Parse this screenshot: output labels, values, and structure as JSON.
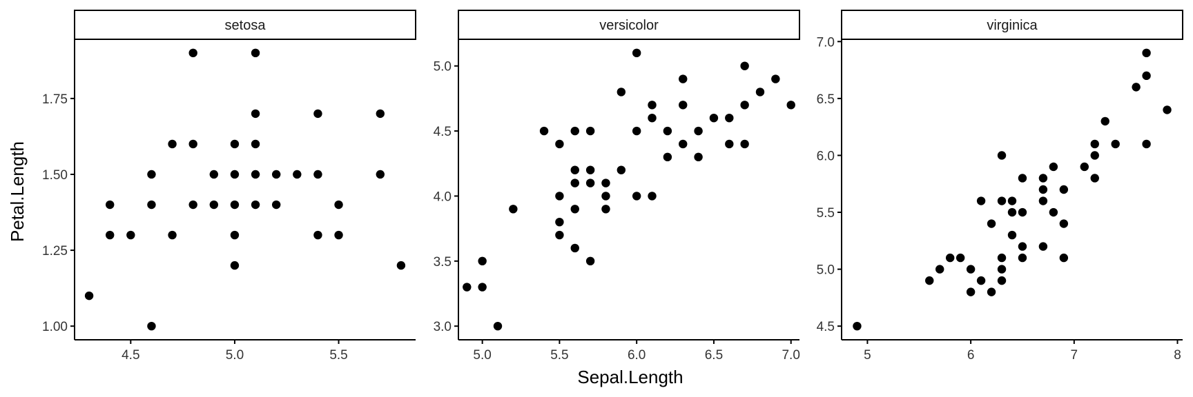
{
  "chart_data": {
    "type": "scatter",
    "xlabel": "Sepal.Length",
    "ylabel": "Petal.Length",
    "grid": false,
    "facets": [
      {
        "name": "setosa",
        "xlim": [
          4.23,
          5.87
        ],
        "ylim": [
          0.955,
          1.945
        ],
        "xticks": [
          4.5,
          5.0,
          5.5
        ],
        "xtick_labels": [
          "4.5",
          "5.0",
          "5.5"
        ],
        "yticks": [
          1.0,
          1.25,
          1.5,
          1.75
        ],
        "ytick_labels": [
          "1.00",
          "1.25",
          "1.50",
          "1.75"
        ],
        "points": [
          [
            4.3,
            1.1
          ],
          [
            4.4,
            1.4
          ],
          [
            4.4,
            1.3
          ],
          [
            4.5,
            1.3
          ],
          [
            4.6,
            1.5
          ],
          [
            4.6,
            1.4
          ],
          [
            4.6,
            1.0
          ],
          [
            4.7,
            1.6
          ],
          [
            4.7,
            1.3
          ],
          [
            4.8,
            1.9
          ],
          [
            4.8,
            1.6
          ],
          [
            4.8,
            1.4
          ],
          [
            4.9,
            1.5
          ],
          [
            4.9,
            1.4
          ],
          [
            5.0,
            1.6
          ],
          [
            5.0,
            1.5
          ],
          [
            5.0,
            1.4
          ],
          [
            5.0,
            1.3
          ],
          [
            5.0,
            1.2
          ],
          [
            5.1,
            1.9
          ],
          [
            5.1,
            1.7
          ],
          [
            5.1,
            1.6
          ],
          [
            5.1,
            1.5
          ],
          [
            5.1,
            1.4
          ],
          [
            5.2,
            1.5
          ],
          [
            5.2,
            1.4
          ],
          [
            5.3,
            1.5
          ],
          [
            5.4,
            1.7
          ],
          [
            5.4,
            1.5
          ],
          [
            5.4,
            1.3
          ],
          [
            5.5,
            1.4
          ],
          [
            5.5,
            1.3
          ],
          [
            5.7,
            1.7
          ],
          [
            5.7,
            1.5
          ],
          [
            5.8,
            1.2
          ]
        ]
      },
      {
        "name": "versicolor",
        "xlim": [
          4.845,
          7.055
        ],
        "ylim": [
          2.895,
          5.205
        ],
        "xticks": [
          5.0,
          5.5,
          6.0,
          6.5,
          7.0
        ],
        "xtick_labels": [
          "5.0",
          "5.5",
          "6.0",
          "6.5",
          "7.0"
        ],
        "yticks": [
          3.0,
          3.5,
          4.0,
          4.5,
          5.0
        ],
        "ytick_labels": [
          "3.0",
          "3.5",
          "4.0",
          "4.5",
          "5.0"
        ],
        "points": [
          [
            4.9,
            3.3
          ],
          [
            5.0,
            3.5
          ],
          [
            5.0,
            3.3
          ],
          [
            5.1,
            3.0
          ],
          [
            5.2,
            3.9
          ],
          [
            5.4,
            4.5
          ],
          [
            5.5,
            4.4
          ],
          [
            5.5,
            4.0
          ],
          [
            5.5,
            3.8
          ],
          [
            5.5,
            3.7
          ],
          [
            5.6,
            4.5
          ],
          [
            5.6,
            4.2
          ],
          [
            5.6,
            4.1
          ],
          [
            5.6,
            3.9
          ],
          [
            5.6,
            3.6
          ],
          [
            5.7,
            4.5
          ],
          [
            5.7,
            4.2
          ],
          [
            5.7,
            4.1
          ],
          [
            5.7,
            3.5
          ],
          [
            5.8,
            4.1
          ],
          [
            5.8,
            4.0
          ],
          [
            5.8,
            3.9
          ],
          [
            5.9,
            4.8
          ],
          [
            5.9,
            4.2
          ],
          [
            6.0,
            5.1
          ],
          [
            6.0,
            4.5
          ],
          [
            6.0,
            4.0
          ],
          [
            6.1,
            4.7
          ],
          [
            6.1,
            4.6
          ],
          [
            6.1,
            4.0
          ],
          [
            6.2,
            4.5
          ],
          [
            6.2,
            4.3
          ],
          [
            6.3,
            4.9
          ],
          [
            6.3,
            4.7
          ],
          [
            6.3,
            4.4
          ],
          [
            6.4,
            4.5
          ],
          [
            6.4,
            4.3
          ],
          [
            6.5,
            4.6
          ],
          [
            6.6,
            4.6
          ],
          [
            6.6,
            4.4
          ],
          [
            6.7,
            5.0
          ],
          [
            6.7,
            4.7
          ],
          [
            6.7,
            4.4
          ],
          [
            6.8,
            4.8
          ],
          [
            6.9,
            4.9
          ],
          [
            7.0,
            4.7
          ]
        ]
      },
      {
        "name": "virginica",
        "xlim": [
          4.75,
          8.05
        ],
        "ylim": [
          4.38,
          7.02
        ],
        "xticks": [
          5,
          6,
          7,
          8
        ],
        "xtick_labels": [
          "5",
          "6",
          "7",
          "8"
        ],
        "yticks": [
          4.5,
          5.0,
          5.5,
          6.0,
          6.5,
          7.0
        ],
        "ytick_labels": [
          "4.5",
          "5.0",
          "5.5",
          "6.0",
          "6.5",
          "7.0"
        ],
        "points": [
          [
            4.9,
            4.5
          ],
          [
            5.6,
            4.9
          ],
          [
            5.7,
            5.0
          ],
          [
            5.8,
            5.1
          ],
          [
            5.9,
            5.1
          ],
          [
            6.0,
            5.0
          ],
          [
            6.0,
            4.8
          ],
          [
            6.1,
            5.6
          ],
          [
            6.1,
            4.9
          ],
          [
            6.2,
            5.4
          ],
          [
            6.2,
            4.8
          ],
          [
            6.3,
            6.0
          ],
          [
            6.3,
            5.6
          ],
          [
            6.3,
            5.1
          ],
          [
            6.3,
            5.0
          ],
          [
            6.3,
            4.9
          ],
          [
            6.4,
            5.6
          ],
          [
            6.4,
            5.5
          ],
          [
            6.4,
            5.3
          ],
          [
            6.5,
            5.8
          ],
          [
            6.5,
            5.5
          ],
          [
            6.5,
            5.2
          ],
          [
            6.5,
            5.1
          ],
          [
            6.7,
            5.8
          ],
          [
            6.7,
            5.7
          ],
          [
            6.7,
            5.6
          ],
          [
            6.7,
            5.2
          ],
          [
            6.8,
            5.9
          ],
          [
            6.8,
            5.5
          ],
          [
            6.9,
            5.7
          ],
          [
            6.9,
            5.4
          ],
          [
            6.9,
            5.1
          ],
          [
            7.1,
            5.9
          ],
          [
            7.2,
            6.1
          ],
          [
            7.2,
            6.0
          ],
          [
            7.2,
            5.8
          ],
          [
            7.3,
            6.3
          ],
          [
            7.4,
            6.1
          ],
          [
            7.6,
            6.6
          ],
          [
            7.7,
            6.9
          ],
          [
            7.7,
            6.7
          ],
          [
            7.7,
            6.1
          ],
          [
            7.9,
            6.4
          ]
        ]
      }
    ]
  }
}
